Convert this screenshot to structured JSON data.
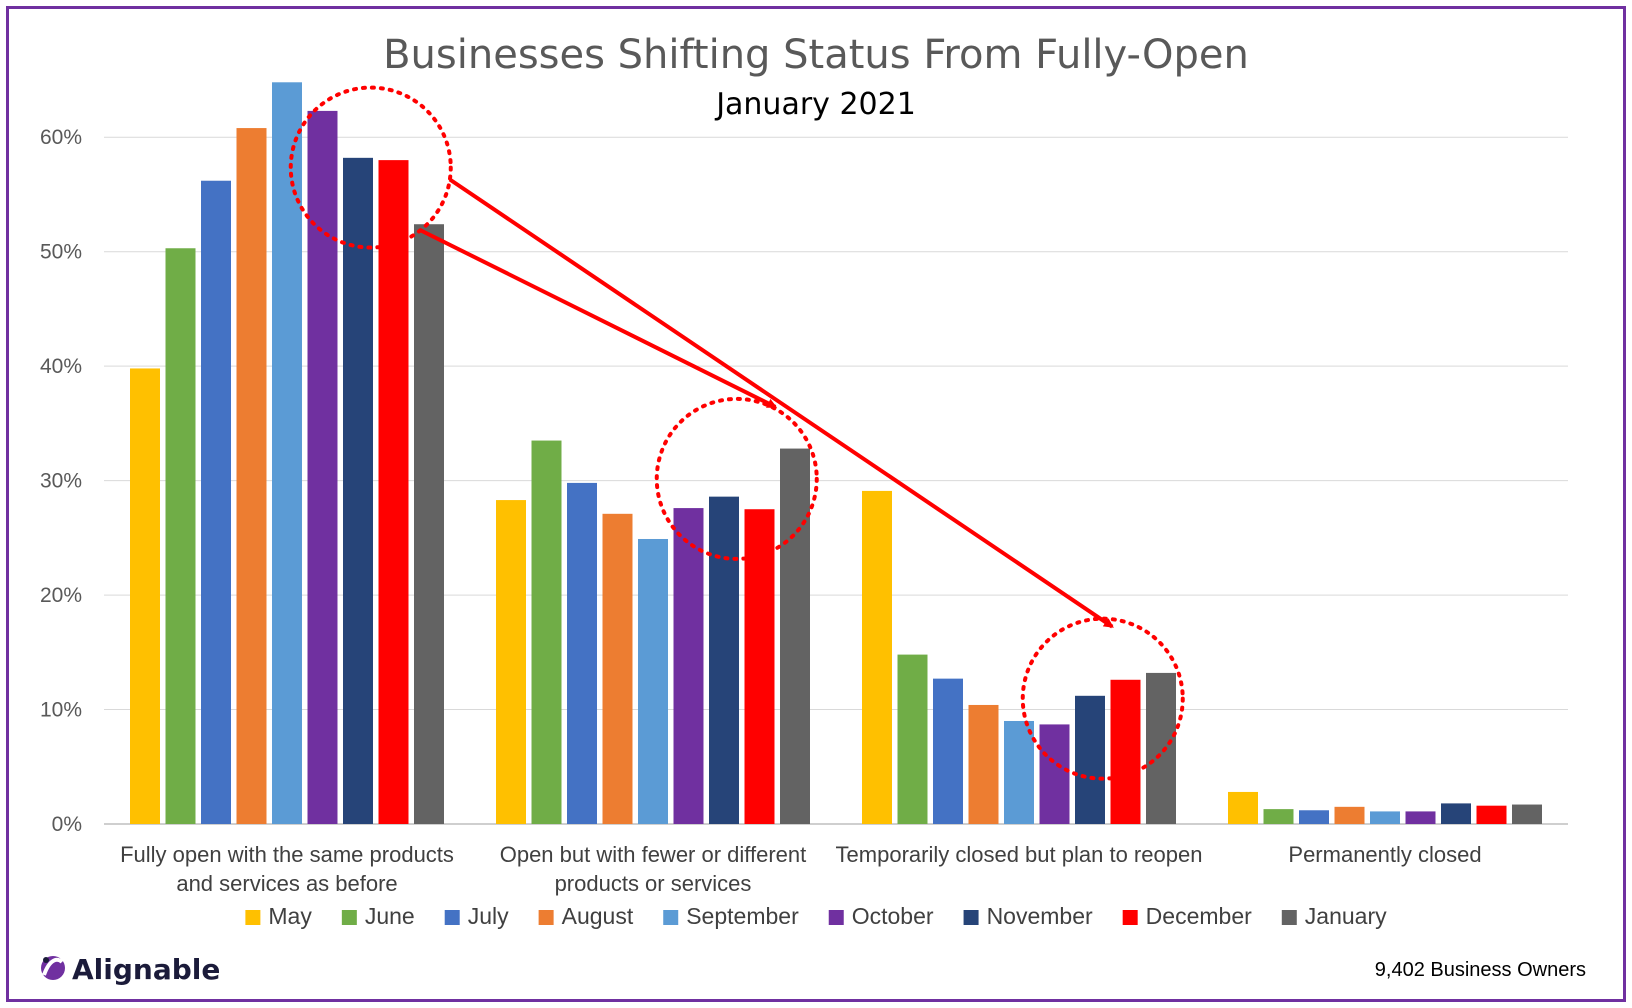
{
  "chart_data": {
    "type": "bar",
    "title": "Businesses Shifting Status From Fully-Open",
    "subtitle": "January 2021",
    "categories": [
      [
        "Fully open with the same products",
        "and services as before"
      ],
      [
        "Open but with fewer or different",
        "products or services"
      ],
      [
        "Temporarily closed but plan to reopen"
      ],
      [
        "Permanently closed"
      ]
    ],
    "ylim": [
      0,
      0.65
    ],
    "yticks": [
      0,
      0.1,
      0.2,
      0.3,
      0.4,
      0.5,
      0.6
    ],
    "ytick_labels": [
      "0%",
      "10%",
      "20%",
      "30%",
      "40%",
      "50%",
      "60%"
    ],
    "grid": true,
    "legend_position": "bottom",
    "series": [
      {
        "name": "May",
        "color": "#ffc000",
        "values": [
          0.398,
          0.283,
          0.291,
          0.028
        ]
      },
      {
        "name": "June",
        "color": "#70ad47",
        "values": [
          0.503,
          0.335,
          0.148,
          0.013
        ]
      },
      {
        "name": "July",
        "color": "#4472c4",
        "values": [
          0.562,
          0.298,
          0.127,
          0.012
        ]
      },
      {
        "name": "August",
        "color": "#ed7d31",
        "values": [
          0.608,
          0.271,
          0.104,
          0.015
        ]
      },
      {
        "name": "September",
        "color": "#5b9bd5",
        "values": [
          0.648,
          0.249,
          0.09,
          0.011
        ]
      },
      {
        "name": "October",
        "color": "#7030a0",
        "values": [
          0.623,
          0.276,
          0.087,
          0.011
        ]
      },
      {
        "name": "November",
        "color": "#264478",
        "values": [
          0.582,
          0.286,
          0.112,
          0.018
        ]
      },
      {
        "name": "December",
        "color": "#ff0000",
        "values": [
          0.58,
          0.275,
          0.126,
          0.016
        ]
      },
      {
        "name": "January",
        "color": "#636363",
        "values": [
          0.524,
          0.328,
          0.132,
          0.017
        ]
      }
    ],
    "annotations": {
      "highlight_color": "#ff0000",
      "circled_groups": [
        0,
        1,
        2
      ],
      "arrows": [
        {
          "from_group": 0,
          "to_group": 1
        },
        {
          "from_group": 0,
          "to_group": 2
        }
      ]
    }
  },
  "footer": {
    "brand": "Alignable",
    "note": "9,402 Business Owners"
  },
  "colors": {
    "frame": "#7030a0",
    "gridline": "#d9d9d9",
    "axis": "#bfbfbf"
  }
}
